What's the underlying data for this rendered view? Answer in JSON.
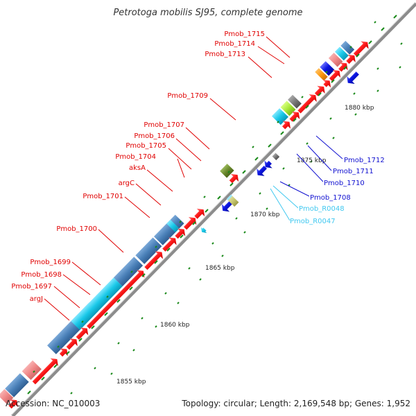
{
  "title": "Petrotoga mobilis SJ95, complete genome",
  "footer": {
    "accession": "Accession: NC_010003",
    "topology": "Topology: circular; Length: 2,169,548 bp; Genes: 1,952"
  },
  "scale": [
    "1855 kbp",
    "1860 kbp",
    "1865 kbp",
    "1870 kbp",
    "1875 kbp",
    "1880 kbp"
  ],
  "labels_left": [
    "Pmob_1715",
    "Pmob_1714",
    "Pmob_1713",
    "Pmob_1709",
    "Pmob_1707",
    "Pmob_1706",
    "Pmob_1705",
    "Pmob_1704",
    "aksA",
    "argC",
    "Pmob_1701",
    "Pmob_1700",
    "Pmob_1699",
    "Pmob_1698",
    "Pmob_1697",
    "argJ"
  ],
  "labels_right": [
    "Pmob_1712",
    "Pmob_1711",
    "Pmob_1710",
    "Pmob_1708",
    "Pmob_R0048",
    "Pmob_R0047"
  ],
  "colors": {
    "forward_cds": "#ff1a1a",
    "reverse_cds": "#0a14e0",
    "steel_blue_block": "#4a80b8",
    "pink_block": "#f08888",
    "cyan_block": "#19c8e8",
    "olive_block": "#6b8a2e",
    "khaki_block": "#c8c870",
    "orange_block": "#ff9a10",
    "grey_block": "#7a7a7a",
    "green_tick": "#1a8a1a",
    "left_label": "#e00000",
    "right_label_blue": "#1010d0",
    "right_label_cyan": "#40c8f0"
  }
}
